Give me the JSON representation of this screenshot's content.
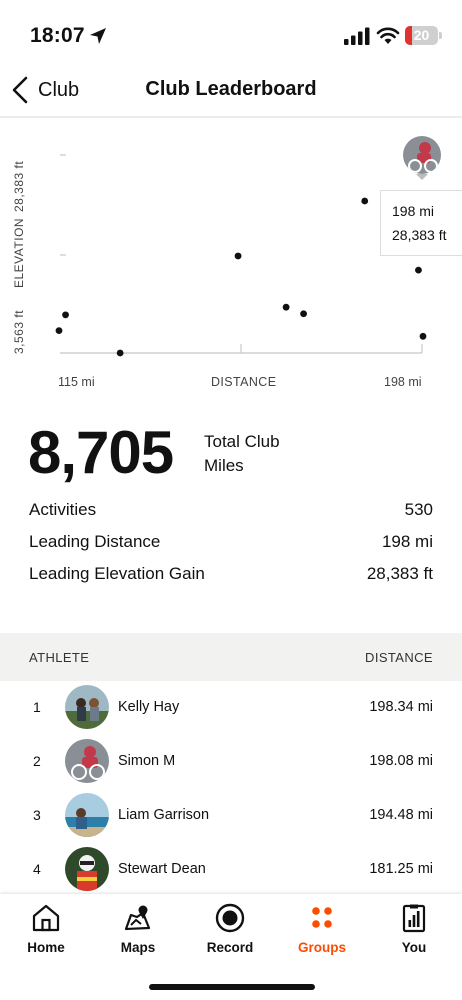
{
  "status_bar": {
    "time": "18:07",
    "battery": "20",
    "battery_level": 0.2
  },
  "nav": {
    "back_label": "Club",
    "title": "Club Leaderboard"
  },
  "chart_data": {
    "type": "scatter",
    "xlabel": "DISTANCE",
    "ylabel": "ELEVATION",
    "xlim_labels": [
      "115 mi",
      "198 mi"
    ],
    "ylim_labels": [
      "3,563 ft",
      "28,383 ft"
    ],
    "points": [
      {
        "x": 115,
        "y": 4600
      },
      {
        "x": 116.5,
        "y": 7500
      },
      {
        "x": 129,
        "y": 500
      },
      {
        "x": 156,
        "y": 18300
      },
      {
        "x": 167,
        "y": 8900
      },
      {
        "x": 171,
        "y": 7700
      },
      {
        "x": 185,
        "y": 28383
      },
      {
        "x": 197.3,
        "y": 15700
      },
      {
        "x": 198.34,
        "y": 3563
      }
    ],
    "tooltip": {
      "distance": "198 mi",
      "elevation": "28,383 ft"
    }
  },
  "summary": {
    "total_value": "8,705",
    "total_label": "Total Club Miles",
    "stats": [
      {
        "label": "Activities",
        "value": "530"
      },
      {
        "label": "Leading Distance",
        "value": "198 mi"
      },
      {
        "label": "Leading Elevation Gain",
        "value": "28,383 ft"
      }
    ]
  },
  "leaderboard": {
    "col_athlete": "ATHLETE",
    "col_distance": "DISTANCE",
    "rows": [
      {
        "rank": "1",
        "name": "Kelly Hay",
        "distance": "198.34 mi"
      },
      {
        "rank": "2",
        "name": "Simon M",
        "distance": "198.08 mi"
      },
      {
        "rank": "3",
        "name": "Liam Garrison",
        "distance": "194.48 mi"
      },
      {
        "rank": "4",
        "name": "Stewart Dean",
        "distance": "181.25 mi"
      }
    ]
  },
  "tabs": [
    {
      "label": "Home",
      "icon": "home-icon",
      "active": false
    },
    {
      "label": "Maps",
      "icon": "map-icon",
      "active": false
    },
    {
      "label": "Record",
      "icon": "record-icon",
      "active": false
    },
    {
      "label": "Groups",
      "icon": "groups-icon",
      "active": true
    },
    {
      "label": "You",
      "icon": "profile-icon",
      "active": false
    }
  ],
  "colors": {
    "accent": "#FC4C02",
    "text": "#111111",
    "table_header_bg": "#F2F2F1",
    "battery_low": "#E0322E"
  }
}
